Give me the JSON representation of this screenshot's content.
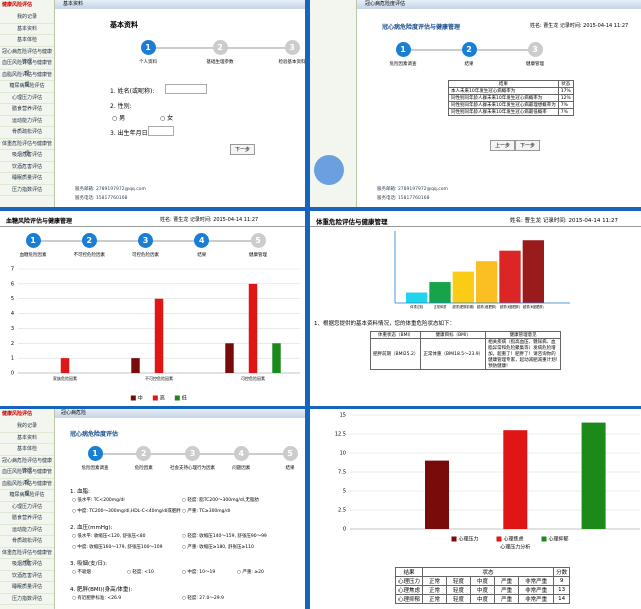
{
  "panel_basic": {
    "brand": "健康风险评估",
    "tab": "基本资料",
    "heading": "基本资料",
    "sidebar": [
      "我的记录",
      "基本资料",
      "基本体检",
      "冠心病危险评估与健康管理",
      "血压风险评估与健康管理",
      "血脂风险评估与健康管理",
      "糖尿病风险评估",
      "心理压力评估",
      "膳食营养评估",
      "运动能力评估",
      "骨质疏松评估",
      "体重危险评估与健康管理",
      "吸烟危害评估",
      "饮酒危害评估",
      "睡眠质量评估",
      "压力指数评估"
    ],
    "step_numbers": [
      "1",
      "2",
      "3"
    ],
    "steps": [
      "个人资料",
      "基础生理参数",
      "检验基本资料"
    ],
    "q1": "1. 姓名(或昵称):",
    "q2": "2. 性别:",
    "male": "男",
    "female": "女",
    "q3": "3. 出生年月日:",
    "next": "下一步",
    "email": "服务邮箱: 2789197972@qq.com",
    "phone": "服务电话: 15817760168"
  },
  "panel_chd_result": {
    "tab": "冠心病危险度评估",
    "heading": "冠心病危险度评估与健康管理",
    "record": "姓名: 曹生龙  记录时间: 2015-04-14 11:27",
    "step_numbers": [
      "1",
      "2",
      "3"
    ],
    "steps": [
      "危险因素调查",
      "结果",
      "健康管理"
    ],
    "table": {
      "header": [
        "结果",
        "状态"
      ],
      "rows": [
        [
          "本人未来10年发生冠心病概率为",
          "17%"
        ],
        [
          "同性别同年龄人群未来10年发生冠心病概率为",
          "12%"
        ],
        [
          "同性别同年龄人群未来10年发生冠心病最理想概率为",
          "7%"
        ],
        [
          "同性别同年龄人群未来10年发生冠心病最低概率",
          "7%"
        ]
      ]
    },
    "prev": "上一步",
    "next": "下一步",
    "email": "服务邮箱: 2789197972@qq.com",
    "phone": "服务电话: 15817760168"
  },
  "panel_glucose": {
    "heading": "血糖风险评估与健康管理",
    "record": "姓名: 曹生龙  记录时间: 2015-04-14 11:27",
    "step_numbers": [
      "1",
      "2",
      "3",
      "4",
      "5"
    ],
    "steps": [
      "血糖危险因素",
      "不可控危险因素",
      "可控危险因素",
      "结果",
      "健康管理"
    ]
  },
  "panel_weight": {
    "heading": "体重危险评估与健康管理",
    "record": "姓名: 曹生龙  记录时间: 2015-04-14 11:27",
    "note": "1、根据您提供的基本资料情况，您的体重危险状态如下：",
    "table": {
      "header": [
        "体重状态（BMI）",
        "健康目标（BMI）",
        "健康管理意见"
      ],
      "rows": [
        [
          "肥胖前期（BMI25.2）",
          "正常体重（BMI18.5～23.9）",
          "相关疾病（指高血压、糖尿病、血脂异常和危险聚集等）发病危险增加，超重了！肥胖了！请咨询你的健康管理专家，起动减肥减重计划!预防健康!"
        ]
      ]
    }
  },
  "panel_chd_form": {
    "brand": "健康风险评估",
    "tab": "冠心病危险",
    "heading": "冠心病危险度评估",
    "step_numbers": [
      "1",
      "2",
      "3",
      "4",
      "5"
    ],
    "steps": [
      "危险因素调查",
      "危险因素",
      "社会支持心理行为因素",
      "问题因素",
      "结果"
    ],
    "questions": [
      {
        "title": "1. 血脂:",
        "options": [
          "低水平: TC<200mg/dl",
          "轻度: 脂TC200～300mg/dl,无脂肪",
          "中度: TC200～300mg/dl,HDL-C<40mg/dl或肥胖",
          "严重: TC≥300mg/dl"
        ]
      },
      {
        "title": "2. 血压(mmHg):",
        "options": [
          "低水平: 收缩压<120, 舒张压<80",
          "轻度: 收缩压140～159, 舒张压90～99",
          "中度: 收缩压160～179, 舒张压100～109",
          "严重: 收缩压≥180, 舒张压≥110"
        ]
      },
      {
        "title": "3. 吸烟(支/日):",
        "options": [
          "不吸烟",
          "轻度: <10",
          "中度: 10～19",
          "严重: ≥20"
        ]
      },
      {
        "title": "4. 肥胖(BMI)(身高/体重):",
        "options": [
          "有近肥胖标准: <26.9",
          "轻度: 27.0～29.9"
        ]
      }
    ]
  },
  "panel_mental": {
    "table": {
      "header": [
        "结果",
        "状态",
        "分数"
      ],
      "levels": [
        "正常",
        "轻度",
        "中度",
        "严重",
        "非常严重"
      ],
      "rows": [
        {
          "name": "心理压力",
          "score": "9"
        },
        {
          "name": "心理焦虑",
          "score": "13"
        },
        {
          "name": "心理抑郁",
          "score": "14"
        }
      ]
    }
  },
  "chart_data": [
    {
      "type": "bar",
      "categories": [
        "家族危险因素",
        "不可控危险因素",
        "可控危险因素"
      ],
      "series": [
        {
          "name": "中",
          "color": "#7a0b0b",
          "values": [
            null,
            1,
            2
          ]
        },
        {
          "name": "高",
          "color": "#e01616",
          "values": [
            1,
            5,
            6
          ]
        },
        {
          "name": "低",
          "color": "#1b8a1b",
          "values": [
            null,
            null,
            2
          ]
        }
      ],
      "ylim": [
        0,
        7
      ],
      "yticks": [
        0,
        1,
        2,
        3,
        4,
        5,
        6,
        7
      ],
      "grid": true
    },
    {
      "type": "bar",
      "categories": [
        "体重过轻",
        "正常体重",
        "超重(肥胖前期)",
        "超重(Ⅰ度肥胖)",
        "超重(Ⅱ度肥胖)",
        "超重(Ⅲ度肥胖)"
      ],
      "colors": [
        "#22d3ee",
        "#16a34a",
        "#facc15",
        "#fbbf24",
        "#dc2626",
        "#991b1b"
      ],
      "values": [
        1,
        2,
        3,
        4,
        5,
        6
      ],
      "ylim": [
        0,
        6.5
      ]
    },
    {
      "type": "bar",
      "xlabel": "心理压力分析",
      "categories": [
        "心理压力分析"
      ],
      "series": [
        {
          "name": "心理压力",
          "color": "#7a0b0b",
          "values": [
            9
          ]
        },
        {
          "name": "心理焦虑",
          "color": "#e01616",
          "values": [
            13
          ]
        },
        {
          "name": "心理抑郁",
          "color": "#1b8a1b",
          "values": [
            14
          ]
        }
      ],
      "ylim": [
        0,
        15
      ],
      "yticks": [
        0,
        2.5,
        5,
        7.5,
        10,
        12.5,
        15
      ],
      "grid": true
    }
  ]
}
